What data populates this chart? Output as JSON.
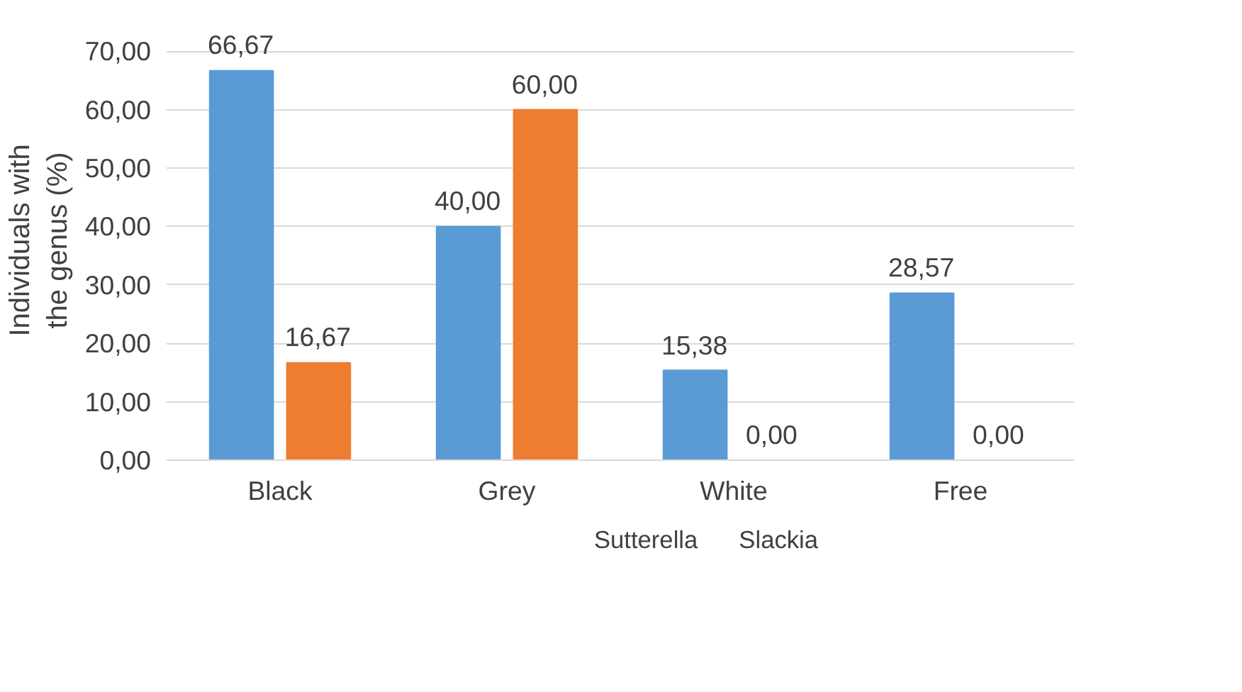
{
  "chart_data": {
    "type": "bar",
    "ylabel": "Individuals with\nthe genus (%)",
    "categories": [
      "Black",
      "Grey",
      "White",
      "Free"
    ],
    "series": [
      {
        "name": "Sutterella",
        "color": "#5b9bd5",
        "values": [
          66.67,
          40.0,
          15.38,
          28.57
        ],
        "value_labels": [
          "66,67",
          "40,00",
          "15,38",
          "28,57"
        ]
      },
      {
        "name": "Slackia",
        "color": "#ed7d31",
        "values": [
          16.67,
          60.0,
          0.0,
          0.0
        ],
        "value_labels": [
          "16,67",
          "60,00",
          "0,00",
          "0,00"
        ]
      }
    ],
    "ylim": [
      0,
      70
    ],
    "yticks": [
      {
        "value": 0,
        "label": "0,00"
      },
      {
        "value": 10,
        "label": "10,00"
      },
      {
        "value": 20,
        "label": "20,00"
      },
      {
        "value": 30,
        "label": "30,00"
      },
      {
        "value": 40,
        "label": "40,00"
      },
      {
        "value": 50,
        "label": "50,00"
      },
      {
        "value": 60,
        "label": "60,00"
      },
      {
        "value": 70,
        "label": "70,00"
      }
    ],
    "grid": "y",
    "legend": "bottom"
  }
}
